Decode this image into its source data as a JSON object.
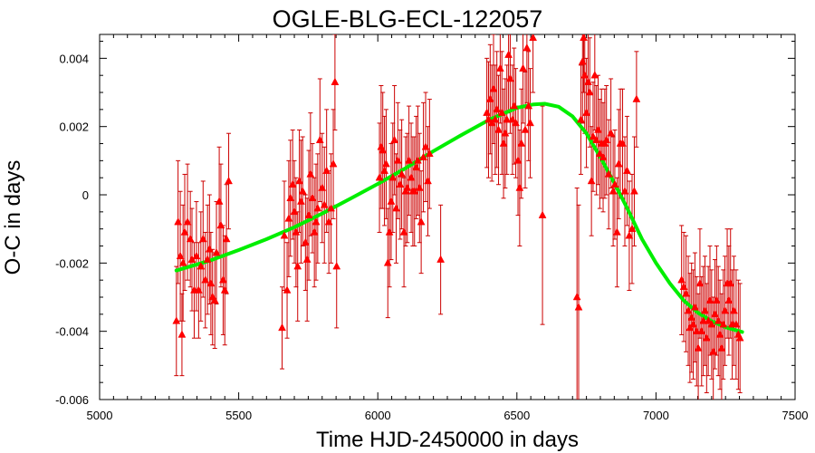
{
  "chart_data": {
    "type": "scatter",
    "title": "OGLE-BLG-ECL-122057",
    "xlabel": "Time HJD-2450000 in days",
    "ylabel": "O-C in days",
    "xlim": [
      5000,
      7500
    ],
    "ylim": [
      -0.006,
      0.0047
    ],
    "xticks": [
      5000,
      5500,
      6000,
      6500,
      7000,
      7500
    ],
    "xtick_labels": [
      "5000",
      "5500",
      "6000",
      "6500",
      "7000",
      "7500"
    ],
    "yticks": [
      -0.006,
      -0.004,
      -0.002,
      0,
      0.002,
      0.004
    ],
    "ytick_labels": [
      "-0.006",
      "-0.004",
      "-0.002",
      "0",
      "0.002",
      "0.004"
    ],
    "grid": false,
    "colors": {
      "points": "#ff0000",
      "fit": "#00ee00"
    },
    "series": [
      {
        "kind": "points_with_errorbars",
        "points": [
          [
            5276,
            -0.0037,
            0.0016
          ],
          [
            5282,
            -0.0008,
            0.0018
          ],
          [
            5290,
            -0.0018,
            0.0019
          ],
          [
            5296,
            -0.0041,
            0.0012
          ],
          [
            5300,
            -0.002,
            0.0017
          ],
          [
            5306,
            -0.0011,
            0.0017
          ],
          [
            5316,
            -0.0008,
            0.0017
          ],
          [
            5326,
            -0.0013,
            0.0014
          ],
          [
            5332,
            -0.0019,
            0.0015
          ],
          [
            5340,
            -0.0028,
            0.0014
          ],
          [
            5348,
            -0.0018,
            0.0016
          ],
          [
            5356,
            -0.0028,
            0.0014
          ],
          [
            5364,
            -0.0021,
            0.0016
          ],
          [
            5372,
            -0.0013,
            0.0017
          ],
          [
            5380,
            -0.0025,
            0.0014
          ],
          [
            5388,
            -0.0019,
            0.0016
          ],
          [
            5395,
            -0.0016,
            0.0016
          ],
          [
            5400,
            -0.0026,
            0.0015
          ],
          [
            5406,
            -0.003,
            0.0014
          ],
          [
            5414,
            -0.0031,
            0.0014
          ],
          [
            5420,
            -0.0017,
            0.0015
          ],
          [
            5430,
            -0.0002,
            0.0016
          ],
          [
            5436,
            -0.0009,
            0.0018
          ],
          [
            5444,
            -0.0025,
            0.0016
          ],
          [
            5450,
            -0.0028,
            0.0016
          ],
          [
            5456,
            -0.0013,
            0.0016
          ],
          [
            5464,
            0.0004,
            0.0014
          ],
          [
            5656,
            -0.0039,
            0.0012
          ],
          [
            5664,
            -0.0012,
            0.0016
          ],
          [
            5674,
            -0.0028,
            0.0014
          ],
          [
            5680,
            -0.0007,
            0.0017
          ],
          [
            5686,
            -0.0001,
            0.0017
          ],
          [
            5694,
            0.0003,
            0.0016
          ],
          [
            5700,
            -0.0005,
            0.0015
          ],
          [
            5706,
            -0.0011,
            0.0016
          ],
          [
            5712,
            -0.0021,
            0.0016
          ],
          [
            5718,
            0.0004,
            0.0015
          ],
          [
            5724,
            -0.0002,
            0.0018
          ],
          [
            5730,
            0.0001,
            0.0016
          ],
          [
            5740,
            -0.0014,
            0.0014
          ],
          [
            5746,
            -0.0019,
            0.0018
          ],
          [
            5752,
            -0.0006,
            0.0019
          ],
          [
            5758,
            0.0006,
            0.0018
          ],
          [
            5765,
            -0.0001,
            0.0016
          ],
          [
            5772,
            -0.0011,
            0.0016
          ],
          [
            5778,
            -0.0008,
            0.0017
          ],
          [
            5784,
            -0.0004,
            0.0016
          ],
          [
            5792,
            0.0016,
            0.0018
          ],
          [
            5800,
            0.0002,
            0.0016
          ],
          [
            5808,
            -0.0003,
            0.0017
          ],
          [
            5816,
            0.0007,
            0.0018
          ],
          [
            5824,
            -0.0008,
            0.0015
          ],
          [
            5832,
            -0.0004,
            0.0016
          ],
          [
            5840,
            0.0009,
            0.0016
          ],
          [
            5846,
            0.0033,
            0.0014
          ],
          [
            5852,
            -0.0021,
            0.0018
          ],
          [
            6006,
            0.0005,
            0.0016
          ],
          [
            6012,
            0.0014,
            0.0018
          ],
          [
            6018,
            0.0013,
            0.0017
          ],
          [
            6024,
            0.0007,
            0.0016
          ],
          [
            6030,
            0.0009,
            0.0016
          ],
          [
            6036,
            -0.002,
            0.0016
          ],
          [
            6042,
            -0.0011,
            0.0016
          ],
          [
            6048,
            -0.0002,
            0.0017
          ],
          [
            6054,
            0.0005,
            0.0016
          ],
          [
            6060,
            0.0016,
            0.0016
          ],
          [
            6066,
            -0.0004,
            0.0016
          ],
          [
            6072,
            0.001,
            0.0017
          ],
          [
            6080,
            0.0003,
            0.0016
          ],
          [
            6086,
            0.0006,
            0.0016
          ],
          [
            6094,
            -0.0011,
            0.0016
          ],
          [
            6100,
            0.0001,
            0.0016
          ],
          [
            6106,
            0.0002,
            0.0016
          ],
          [
            6112,
            0.001,
            0.0016
          ],
          [
            6120,
            0.0005,
            0.0016
          ],
          [
            6126,
            0.0001,
            0.0016
          ],
          [
            6132,
            0.0001,
            0.0016
          ],
          [
            6138,
            0.0008,
            0.0015
          ],
          [
            6144,
            0.001,
            0.0016
          ],
          [
            6150,
            0.0002,
            0.0016
          ],
          [
            6156,
            -0.0008,
            0.0015
          ],
          [
            6164,
            0.0011,
            0.0016
          ],
          [
            6172,
            0.0014,
            0.0016
          ],
          [
            6180,
            0.0004,
            0.0016
          ],
          [
            6186,
            0.0012,
            0.0016
          ],
          [
            6226,
            -0.0019,
            0.0016
          ],
          [
            6392,
            0.0024,
            0.0016
          ],
          [
            6398,
            0.0022,
            0.0017
          ],
          [
            6404,
            0.0028,
            0.0016
          ],
          [
            6410,
            0.0021,
            0.0017
          ],
          [
            6416,
            0.0031,
            0.0016
          ],
          [
            6422,
            0.0022,
            0.0016
          ],
          [
            6428,
            0.0025,
            0.0017
          ],
          [
            6434,
            0.0019,
            0.0016
          ],
          [
            6440,
            0.0037,
            0.0016
          ],
          [
            6446,
            0.0024,
            0.0018
          ],
          [
            6452,
            0.0015,
            0.0016
          ],
          [
            6458,
            0.0018,
            0.0016
          ],
          [
            6464,
            0.0022,
            0.0016
          ],
          [
            6470,
            0.0041,
            0.0017
          ],
          [
            6476,
            0.0034,
            0.0016
          ],
          [
            6484,
            0.0022,
            0.0016
          ],
          [
            6490,
            0.0026,
            0.0017
          ],
          [
            6496,
            0.0021,
            0.0016
          ],
          [
            6504,
            0.001,
            0.0016
          ],
          [
            6510,
            0.0002,
            0.0017
          ],
          [
            6516,
            0.0015,
            0.0016
          ],
          [
            6522,
            0.0037,
            0.0016
          ],
          [
            6530,
            0.0019,
            0.0017
          ],
          [
            6536,
            0.0043,
            0.0016
          ],
          [
            6542,
            0.0026,
            0.0016
          ],
          [
            6548,
            0.0021,
            0.0016
          ],
          [
            6558,
            0.0046,
            0.0016
          ],
          [
            6592,
            -0.0006,
            0.0032
          ],
          [
            6716,
            -0.003,
            0.0032
          ],
          [
            6722,
            -0.0033,
            0.003
          ],
          [
            6730,
            0.0022,
            0.0016
          ],
          [
            6736,
            0.0039,
            0.0018
          ],
          [
            6740,
            0.0046,
            0.0016
          ],
          [
            6744,
            0.0035,
            0.0017
          ],
          [
            6750,
            0.0024,
            0.0016
          ],
          [
            6756,
            0.0033,
            0.0016
          ],
          [
            6762,
            0.003,
            0.0016
          ],
          [
            6768,
            0.0004,
            0.0016
          ],
          [
            6774,
            0.0017,
            0.0016
          ],
          [
            6780,
            0.0035,
            0.0016
          ],
          [
            6786,
            0.0016,
            0.0016
          ],
          [
            6792,
            0.0019,
            0.0016
          ],
          [
            6798,
            0.0012,
            0.0016
          ],
          [
            6804,
            0.0015,
            0.0016
          ],
          [
            6810,
            0.0011,
            0.0016
          ],
          [
            6816,
            0.0015,
            0.0016
          ],
          [
            6822,
            0.0016,
            0.0016
          ],
          [
            6830,
            0.0006,
            0.0016
          ],
          [
            6838,
            0.0018,
            0.0016
          ],
          [
            6846,
            0.0001,
            0.0016
          ],
          [
            6852,
            0.0003,
            0.0016
          ],
          [
            6860,
            -0.0011,
            0.0016
          ],
          [
            6866,
            0.0009,
            0.0016
          ],
          [
            6872,
            0.0015,
            0.0016
          ],
          [
            6880,
            0.0015,
            0.0016
          ],
          [
            6888,
            0.0001,
            0.0016
          ],
          [
            6896,
            0.0007,
            0.0016
          ],
          [
            6904,
            -0.0012,
            0.0016
          ],
          [
            6914,
            -0.001,
            0.0016
          ],
          [
            6922,
            0.0001,
            0.0016
          ],
          [
            6930,
            0.0028,
            0.0014
          ],
          [
            7092,
            -0.0025,
            0.0016
          ],
          [
            7100,
            -0.0027,
            0.0016
          ],
          [
            7108,
            -0.0029,
            0.0017
          ],
          [
            7116,
            -0.0034,
            0.0016
          ],
          [
            7122,
            -0.0039,
            0.0016
          ],
          [
            7128,
            -0.0036,
            0.0016
          ],
          [
            7134,
            -0.0038,
            0.0016
          ],
          [
            7140,
            -0.0033,
            0.0016
          ],
          [
            7146,
            -0.004,
            0.0016
          ],
          [
            7152,
            -0.0045,
            0.0016
          ],
          [
            7158,
            -0.0026,
            0.0016
          ],
          [
            7164,
            -0.004,
            0.0016
          ],
          [
            7170,
            -0.0037,
            0.0016
          ],
          [
            7176,
            -0.0034,
            0.0016
          ],
          [
            7182,
            -0.0042,
            0.0016
          ],
          [
            7188,
            -0.0037,
            0.0016
          ],
          [
            7194,
            -0.0031,
            0.0016
          ],
          [
            7200,
            -0.0038,
            0.0016
          ],
          [
            7206,
            -0.0046,
            0.0016
          ],
          [
            7212,
            -0.0035,
            0.0016
          ],
          [
            7218,
            -0.0031,
            0.0016
          ],
          [
            7224,
            -0.0037,
            0.0016
          ],
          [
            7230,
            -0.0041,
            0.0016
          ],
          [
            7236,
            -0.0045,
            0.0016
          ],
          [
            7242,
            -0.0038,
            0.0016
          ],
          [
            7248,
            -0.0034,
            0.0016
          ],
          [
            7256,
            -0.0026,
            0.0016
          ],
          [
            7262,
            -0.0031,
            0.0016
          ],
          [
            7268,
            -0.0026,
            0.0016
          ],
          [
            7274,
            -0.0038,
            0.0016
          ],
          [
            7280,
            -0.0034,
            0.0016
          ],
          [
            7288,
            -0.0038,
            0.0016
          ],
          [
            7296,
            -0.0041,
            0.0016
          ],
          [
            7302,
            -0.0042,
            0.0016
          ]
        ]
      },
      {
        "kind": "fit_curve",
        "points": [
          [
            5276,
            -0.00222
          ],
          [
            5400,
            -0.00192
          ],
          [
            5500,
            -0.00162
          ],
          [
            5600,
            -0.0013
          ],
          [
            5700,
            -0.00095
          ],
          [
            5800,
            -0.00055
          ],
          [
            5900,
            -0.00012
          ],
          [
            6000,
            0.00032
          ],
          [
            6100,
            0.00078
          ],
          [
            6200,
            0.00128
          ],
          [
            6300,
            0.00175
          ],
          [
            6400,
            0.0022
          ],
          [
            6500,
            0.00255
          ],
          [
            6560,
            0.00265
          ],
          [
            6600,
            0.00267
          ],
          [
            6650,
            0.00258
          ],
          [
            6700,
            0.0023
          ],
          [
            6750,
            0.0018
          ],
          [
            6800,
            0.0011
          ],
          [
            6850,
            0.00035
          ],
          [
            6900,
            -0.00045
          ],
          [
            6950,
            -0.0013
          ],
          [
            7000,
            -0.002
          ],
          [
            7050,
            -0.0026
          ],
          [
            7100,
            -0.0031
          ],
          [
            7150,
            -0.00345
          ],
          [
            7200,
            -0.0037
          ],
          [
            7250,
            -0.00388
          ],
          [
            7310,
            -0.00402
          ]
        ]
      }
    ]
  }
}
